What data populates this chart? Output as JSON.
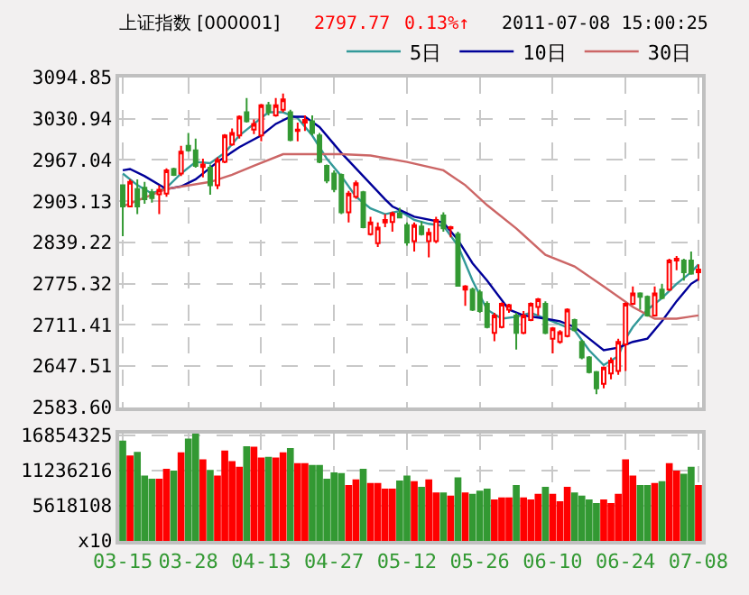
{
  "chart_data": [
    {
      "type": "candlestick",
      "title": "上证指数 [000001]",
      "annotations": [
        "2797.77",
        "0.13%↑",
        "2011-07-08 15:00:25"
      ],
      "categories": [
        null,
        null,
        null,
        null,
        null,
        null,
        null,
        null,
        null,
        null,
        null,
        null,
        null,
        null,
        null,
        null,
        null,
        null,
        null,
        null,
        null,
        null,
        null,
        null,
        null,
        null,
        null,
        null,
        null,
        null,
        null,
        null,
        null,
        null,
        null,
        null,
        null,
        null,
        null,
        null,
        null,
        null,
        null,
        null,
        null,
        null,
        null,
        null,
        null,
        null,
        null,
        null,
        null,
        null,
        null,
        null,
        null,
        null,
        null,
        null,
        null,
        null,
        null,
        null,
        null,
        null,
        null,
        null,
        null,
        null,
        null,
        null,
        null,
        null,
        null,
        null,
        null,
        null,
        null,
        null
      ],
      "ohlc": [
        [
          2928,
          2928,
          2849,
          2895
        ],
        [
          2895,
          2937,
          2895,
          2933
        ],
        [
          2922,
          2937,
          2883,
          2895
        ],
        [
          2924,
          2933,
          2899,
          2906
        ],
        [
          2917,
          2922,
          2901,
          2908
        ],
        [
          2914,
          2928,
          2883,
          2921
        ],
        [
          2915,
          2954,
          2910,
          2951
        ],
        [
          2953,
          2955,
          2942,
          2944
        ],
        [
          2946,
          2989,
          2942,
          2980
        ],
        [
          2989,
          3009,
          2980,
          2982
        ],
        [
          2982,
          3000,
          2955,
          2958
        ],
        [
          2956,
          2969,
          2940,
          2960
        ],
        [
          2955,
          2960,
          2913,
          2928
        ],
        [
          2928,
          2971,
          2922,
          2967
        ],
        [
          2964,
          3007,
          2962,
          3005
        ],
        [
          2991,
          3016,
          2989,
          3009
        ],
        [
          3005,
          3036,
          3000,
          3034
        ],
        [
          3041,
          3063,
          3025,
          3027
        ],
        [
          3014,
          3030,
          3007,
          3023
        ],
        [
          3005,
          3054,
          2996,
          3052
        ],
        [
          3052,
          3057,
          3036,
          3041
        ],
        [
          3036,
          3063,
          3034,
          3052
        ],
        [
          3045,
          3070,
          3041,
          3061
        ],
        [
          3041,
          3045,
          2996,
          2998
        ],
        [
          3012,
          3025,
          2996,
          3014
        ],
        [
          3025,
          3036,
          3012,
          3029
        ],
        [
          3027,
          3036,
          3005,
          3009
        ],
        [
          3005,
          3009,
          2962,
          2964
        ],
        [
          2958,
          2960,
          2931,
          2935
        ],
        [
          2946,
          2951,
          2917,
          2922
        ],
        [
          2944,
          2946,
          2883,
          2886
        ],
        [
          2886,
          2919,
          2870,
          2915
        ],
        [
          2910,
          2935,
          2907,
          2931
        ],
        [
          2917,
          2919,
          2861,
          2863
        ],
        [
          2852,
          2879,
          2850,
          2870
        ],
        [
          2838,
          2870,
          2832,
          2862
        ],
        [
          2870,
          2883,
          2863,
          2874
        ],
        [
          2871,
          2887,
          2856,
          2884
        ],
        [
          2884,
          2893,
          2877,
          2878
        ],
        [
          2866,
          2870,
          2834,
          2839
        ],
        [
          2841,
          2870,
          2825,
          2866
        ],
        [
          2864,
          2872,
          2850,
          2852
        ],
        [
          2841,
          2861,
          2816,
          2854
        ],
        [
          2841,
          2879,
          2838,
          2874
        ],
        [
          2881,
          2886,
          2856,
          2861
        ],
        [
          2861,
          2865,
          2847,
          2863
        ],
        [
          2852,
          2856,
          2771,
          2772
        ],
        [
          2766,
          2773,
          2741,
          2771
        ],
        [
          2766,
          2769,
          2733,
          2735
        ],
        [
          2762,
          2766,
          2730,
          2733
        ],
        [
          2744,
          2748,
          2706,
          2708
        ],
        [
          2699,
          2730,
          2686,
          2726
        ],
        [
          2708,
          2746,
          2706,
          2744
        ],
        [
          2735,
          2744,
          2730,
          2742
        ],
        [
          2726,
          2730,
          2673,
          2699
        ],
        [
          2699,
          2733,
          2697,
          2726
        ],
        [
          2719,
          2746,
          2717,
          2744
        ],
        [
          2739,
          2753,
          2726,
          2751
        ],
        [
          2744,
          2748,
          2697,
          2699
        ],
        [
          2690,
          2708,
          2667,
          2706
        ],
        [
          2685,
          2703,
          2682,
          2700
        ],
        [
          2694,
          2737,
          2692,
          2735
        ],
        [
          2719,
          2721,
          2701,
          2703
        ],
        [
          2685,
          2688,
          2658,
          2661
        ],
        [
          2661,
          2663,
          2636,
          2638
        ],
        [
          2638,
          2640,
          2604,
          2613
        ],
        [
          2620,
          2647,
          2613,
          2645
        ],
        [
          2636,
          2661,
          2627,
          2656
        ],
        [
          2640,
          2690,
          2634,
          2685
        ],
        [
          2681,
          2746,
          2640,
          2744
        ],
        [
          2744,
          2771,
          2742,
          2760
        ],
        [
          2760,
          2762,
          2735,
          2755
        ],
        [
          2755,
          2757,
          2724,
          2726
        ],
        [
          2726,
          2771,
          2724,
          2760
        ],
        [
          2766,
          2775,
          2751,
          2753
        ],
        [
          2766,
          2814,
          2764,
          2811
        ],
        [
          2811,
          2818,
          2796,
          2814
        ],
        [
          2811,
          2814,
          2780,
          2793
        ],
        [
          2811,
          2825,
          2789,
          2791
        ],
        [
          2793,
          2805,
          2780,
          2797
        ]
      ],
      "series": [
        {
          "type": "line",
          "name": "5日",
          "color": "#339999",
          "values": [
            2946,
            null,
            2928,
            null,
            2915,
            null,
            2924,
            null,
            2946,
            null,
            2964,
            null,
            2962,
            null,
            2978,
            null,
            3005,
            null,
            3023,
            null,
            3041,
            null,
            3041,
            null,
            3032,
            null,
            3005,
            null,
            2969,
            null,
            2942,
            null,
            2910,
            null,
            2892,
            null,
            2883,
            null,
            2888,
            null,
            2874,
            null,
            2868,
            null,
            2865,
            null,
            2834,
            null,
            2780,
            null,
            2735,
            null,
            2721,
            null,
            2724,
            null,
            2730,
            null,
            2721,
            null,
            2712,
            null,
            2703,
            null,
            2672,
            null,
            2649,
            null,
            2663,
            2690,
            2708,
            null,
            2735,
            null,
            2753,
            null,
            2775,
            null,
            2793,
            2805
          ]
        },
        {
          "type": "line",
          "name": "10日",
          "color": "#000099",
          "values": [
            2951,
            2953,
            null,
            2942,
            null,
            null,
            2922,
            null,
            2926,
            null,
            2937,
            null,
            null,
            2964,
            null,
            null,
            2987,
            null,
            null,
            3005,
            null,
            3023,
            null,
            3034,
            null,
            3034,
            null,
            3018,
            null,
            null,
            2978,
            null,
            null,
            2942,
            null,
            null,
            2906,
            2895,
            null,
            null,
            2879,
            null,
            null,
            null,
            2870,
            null,
            2843,
            null,
            2807,
            null,
            2780,
            null,
            null,
            2735,
            null,
            2726,
            null,
            null,
            2721,
            null,
            2717,
            null,
            2708,
            null,
            2690,
            null,
            2672,
            null,
            2676,
            null,
            2685,
            null,
            2690,
            null,
            2717,
            null,
            2748,
            null,
            2775,
            2782
          ]
        },
        {
          "type": "line",
          "name": "30日",
          "color": "#cc6666",
          "values": [
            2895,
            null,
            null,
            null,
            null,
            null,
            2922,
            null,
            null,
            null,
            null,
            null,
            2933,
            null,
            null,
            2944,
            null,
            null,
            2958,
            null,
            null,
            null,
            2976,
            null,
            null,
            2976,
            null,
            null,
            null,
            null,
            2976,
            null,
            null,
            null,
            2974,
            null,
            null,
            null,
            null,
            2964,
            null,
            null,
            null,
            null,
            2951,
            null,
            null,
            2928,
            null,
            null,
            2897,
            null,
            null,
            null,
            2861,
            null,
            null,
            null,
            2820,
            null,
            null,
            null,
            2802,
            null,
            null,
            null,
            2771,
            null,
            null,
            null,
            2739,
            null,
            null,
            2721,
            null,
            null,
            2721,
            null,
            null,
            2726
          ]
        }
      ],
      "ylim": [
        2583.6,
        3094.85
      ],
      "yticks": [
        {
          "value": 2583.6,
          "label": "2583.60"
        },
        2647.51,
        2711.41,
        2775.32,
        2839.22,
        2903.13,
        2967.04,
        3030.94,
        3094.85
      ],
      "grid": true,
      "legend": "top right",
      "tick_labels": "y"
    },
    {
      "type": "bar",
      "categories": [
        "03-15",
        null,
        null,
        null,
        null,
        null,
        null,
        null,
        null,
        "03-28",
        null,
        null,
        null,
        null,
        null,
        null,
        null,
        null,
        null,
        "04-13",
        null,
        null,
        null,
        null,
        null,
        null,
        null,
        null,
        null,
        "04-27",
        null,
        null,
        null,
        null,
        null,
        null,
        null,
        null,
        null,
        "05-12",
        null,
        null,
        null,
        null,
        null,
        null,
        null,
        null,
        null,
        "05-26",
        null,
        null,
        null,
        null,
        null,
        null,
        null,
        null,
        null,
        "06-10",
        null,
        null,
        null,
        null,
        null,
        null,
        null,
        null,
        null,
        "06-24",
        null,
        null,
        null,
        null,
        null,
        null,
        null,
        null,
        null,
        "07-08"
      ],
      "values": [
        15900000,
        13500000,
        14100000,
        10300000,
        9800000,
        9800000,
        11400000,
        11100000,
        14000000,
        16200000,
        17000000,
        12900000,
        11200000,
        10300000,
        14300000,
        12600000,
        11700000,
        15000000,
        14900000,
        13200000,
        13300000,
        13200000,
        14000000,
        14700000,
        12300000,
        12300000,
        12000000,
        12000000,
        9800000,
        10800000,
        10700000,
        8800000,
        9700000,
        11400000,
        9100000,
        9100000,
        8200000,
        8200000,
        9500000,
        10300000,
        9400000,
        8500000,
        9700000,
        7600000,
        7600000,
        7100000,
        10000000,
        7600000,
        7400000,
        7900000,
        8200000,
        6500000,
        6800000,
        6800000,
        8800000,
        6800000,
        6500000,
        7400000,
        8500000,
        7400000,
        6200000,
        8500000,
        7600000,
        7100000,
        6500000,
        5900000,
        6500000,
        5900000,
        7400000,
        12900000,
        10300000,
        8800000,
        8800000,
        9100000,
        9400000,
        12300000,
        11100000,
        10600000,
        11700000,
        8800000
      ],
      "colors": [
        "#339933",
        "#ff0000",
        "#339933",
        "#339933",
        "#339933",
        "#ff0000",
        "#ff0000",
        "#339933",
        "#ff0000",
        "#339933",
        "#339933",
        "#ff0000",
        "#339933",
        "#ff0000",
        "#ff0000",
        "#ff0000",
        "#ff0000",
        "#339933",
        "#ff0000",
        "#ff0000",
        "#339933",
        "#ff0000",
        "#ff0000",
        "#339933",
        "#ff0000",
        "#ff0000",
        "#339933",
        "#339933",
        "#339933",
        "#339933",
        "#339933",
        "#ff0000",
        "#ff0000",
        "#339933",
        "#ff0000",
        "#ff0000",
        "#ff0000",
        "#ff0000",
        "#339933",
        "#339933",
        "#ff0000",
        "#339933",
        "#ff0000",
        "#ff0000",
        "#339933",
        "#ff0000",
        "#339933",
        "#ff0000",
        "#339933",
        "#339933",
        "#339933",
        "#ff0000",
        "#ff0000",
        "#ff0000",
        "#339933",
        "#ff0000",
        "#ff0000",
        "#ff0000",
        "#339933",
        "#ff0000",
        "#ff0000",
        "#ff0000",
        "#339933",
        "#339933",
        "#339933",
        "#339933",
        "#ff0000",
        "#ff0000",
        "#ff0000",
        "#ff0000",
        "#ff0000",
        "#339933",
        "#339933",
        "#ff0000",
        "#339933",
        "#ff0000",
        "#ff0000",
        "#339933",
        "#339933",
        "#ff0000"
      ],
      "ylim": [
        0,
        17200000
      ],
      "yticks": [
        {
          "value": 0,
          "label": "x10"
        },
        5618108,
        11236216,
        16854325
      ],
      "grid": true
    }
  ]
}
